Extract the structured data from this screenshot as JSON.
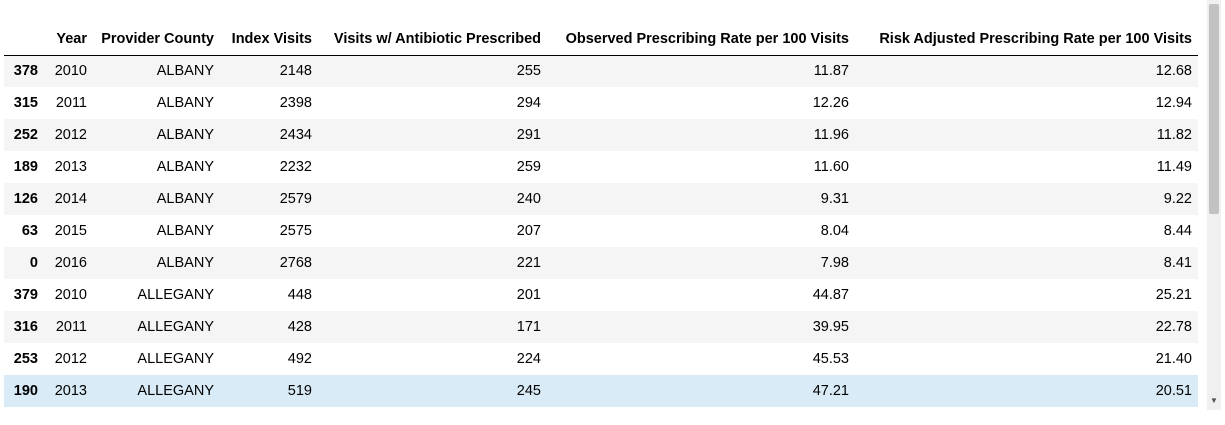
{
  "table": {
    "columns": [
      "",
      "Year",
      "Provider County",
      "Index Visits",
      "Visits w/ Antibiotic Prescribed",
      "Observed Prescribing Rate per 100 Visits",
      "Risk Adjusted Prescribing Rate per 100 Visits"
    ],
    "rows": [
      {
        "index": "378",
        "year": "2010",
        "county": "ALBANY",
        "index_visits": "2148",
        "abx_visits": "255",
        "observed_rate": "11.87",
        "risk_adjusted_rate": "12.68"
      },
      {
        "index": "315",
        "year": "2011",
        "county": "ALBANY",
        "index_visits": "2398",
        "abx_visits": "294",
        "observed_rate": "12.26",
        "risk_adjusted_rate": "12.94"
      },
      {
        "index": "252",
        "year": "2012",
        "county": "ALBANY",
        "index_visits": "2434",
        "abx_visits": "291",
        "observed_rate": "11.96",
        "risk_adjusted_rate": "11.82"
      },
      {
        "index": "189",
        "year": "2013",
        "county": "ALBANY",
        "index_visits": "2232",
        "abx_visits": "259",
        "observed_rate": "11.60",
        "risk_adjusted_rate": "11.49"
      },
      {
        "index": "126",
        "year": "2014",
        "county": "ALBANY",
        "index_visits": "2579",
        "abx_visits": "240",
        "observed_rate": "9.31",
        "risk_adjusted_rate": "9.22"
      },
      {
        "index": "63",
        "year": "2015",
        "county": "ALBANY",
        "index_visits": "2575",
        "abx_visits": "207",
        "observed_rate": "8.04",
        "risk_adjusted_rate": "8.44"
      },
      {
        "index": "0",
        "year": "2016",
        "county": "ALBANY",
        "index_visits": "2768",
        "abx_visits": "221",
        "observed_rate": "7.98",
        "risk_adjusted_rate": "8.41"
      },
      {
        "index": "379",
        "year": "2010",
        "county": "ALLEGANY",
        "index_visits": "448",
        "abx_visits": "201",
        "observed_rate": "44.87",
        "risk_adjusted_rate": "25.21"
      },
      {
        "index": "316",
        "year": "2011",
        "county": "ALLEGANY",
        "index_visits": "428",
        "abx_visits": "171",
        "observed_rate": "39.95",
        "risk_adjusted_rate": "22.78"
      },
      {
        "index": "253",
        "year": "2012",
        "county": "ALLEGANY",
        "index_visits": "492",
        "abx_visits": "224",
        "observed_rate": "45.53",
        "risk_adjusted_rate": "21.40"
      },
      {
        "index": "190",
        "year": "2013",
        "county": "ALLEGANY",
        "index_visits": "519",
        "abx_visits": "245",
        "observed_rate": "47.21",
        "risk_adjusted_rate": "20.51"
      }
    ],
    "hovered_row": 10
  },
  "colors": {
    "stripe": "#f5f5f5",
    "hover": "#d8ebf7",
    "scroll_thumb": "#c2c2c2"
  },
  "scrollbar": {
    "down_arrow_icon": "▼"
  }
}
